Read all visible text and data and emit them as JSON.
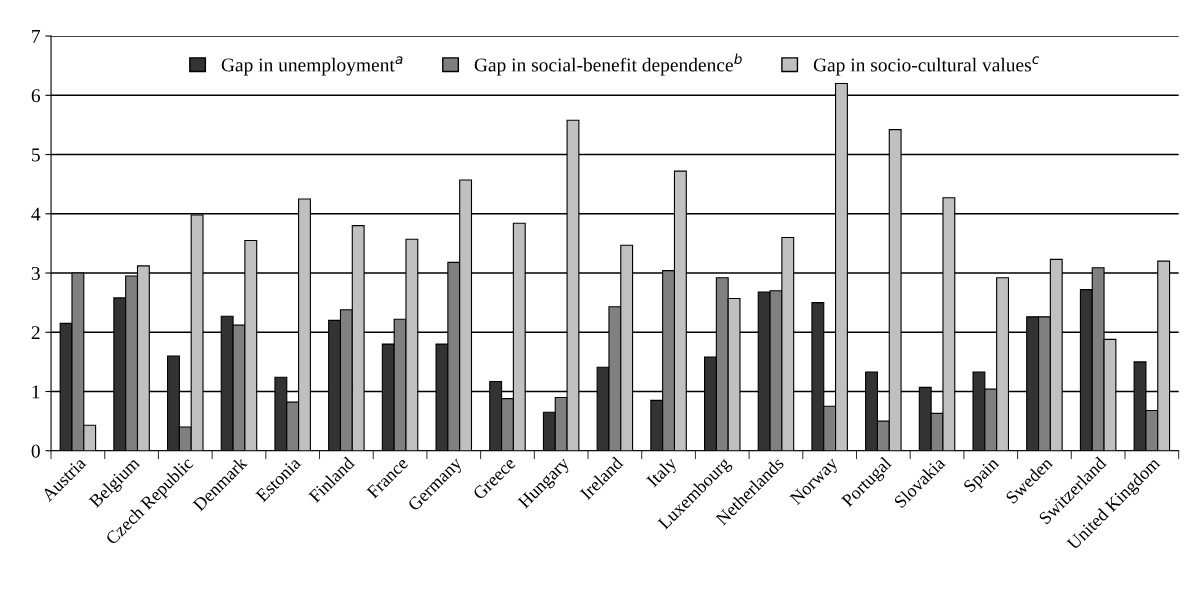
{
  "chart_data": {
    "type": "bar",
    "categories": [
      "Austria",
      "Belgium",
      "Czech Republic",
      "Denmark",
      "Estonia",
      "Finland",
      "France",
      "Germany",
      "Greece",
      "Hungary",
      "Ireland",
      "Italy",
      "Luxembourg",
      "Netherlands",
      "Norway",
      "Portugal",
      "Slovakia",
      "Spain",
      "Sweden",
      "Switzerland",
      "United Kingdom"
    ],
    "series": [
      {
        "name": "Gap in unemployment$^{a}$",
        "color": "#333333",
        "values": [
          2.15,
          2.58,
          1.6,
          2.27,
          1.24,
          2.2,
          1.8,
          1.8,
          1.17,
          0.65,
          1.41,
          0.85,
          1.58,
          2.68,
          2.5,
          1.33,
          1.07,
          1.33,
          2.26,
          2.72,
          1.5
        ]
      },
      {
        "name": "Gap in social-benefit dependence$^{b}$",
        "color": "#808080",
        "values": [
          3.0,
          2.95,
          0.4,
          2.12,
          0.82,
          2.38,
          2.22,
          3.18,
          0.88,
          0.9,
          2.43,
          3.04,
          2.92,
          2.7,
          0.75,
          0.5,
          0.63,
          1.04,
          2.26,
          3.09,
          0.68
        ]
      },
      {
        "name": "Gap in socio-cultural values$^{c}$",
        "color": "#c0c0c0",
        "values": [
          0.43,
          3.12,
          3.98,
          3.55,
          4.25,
          3.8,
          3.57,
          4.57,
          3.84,
          5.58,
          3.47,
          4.72,
          2.57,
          3.6,
          6.2,
          5.42,
          4.27,
          2.92,
          3.23,
          1.88,
          3.2
        ]
      }
    ],
    "ylim": [
      0,
      7
    ],
    "yticks": [
      0,
      1,
      2,
      3,
      4,
      5,
      6,
      7
    ],
    "grid": "y",
    "legend": "top"
  }
}
